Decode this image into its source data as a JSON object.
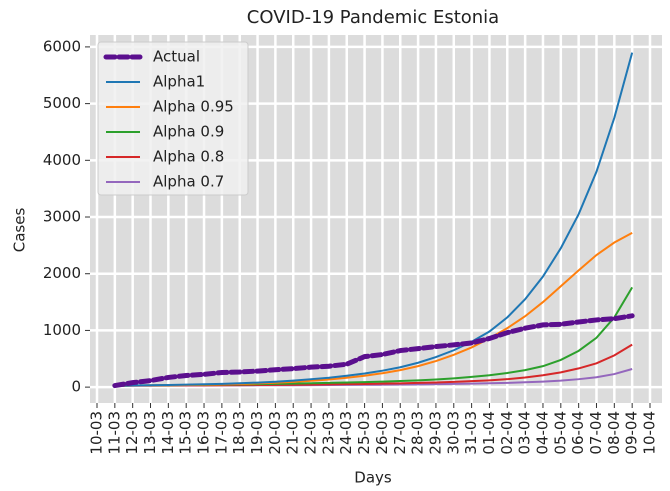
{
  "chart_data": {
    "type": "line",
    "title": "COVID-19 Pandemic Estonia",
    "x_label": "Days",
    "y_label": "Cases",
    "categories": [
      "10-03",
      "11-03",
      "12-03",
      "13-03",
      "14-03",
      "15-03",
      "16-03",
      "17-03",
      "18-03",
      "19-03",
      "20-03",
      "21-03",
      "22-03",
      "23-03",
      "24-03",
      "25-03",
      "26-03",
      "27-03",
      "28-03",
      "29-03",
      "30-03",
      "31-03",
      "01-04",
      "02-04",
      "03-04",
      "04-04",
      "05-04",
      "06-04",
      "07-04",
      "08-04",
      "09-04",
      "10-04"
    ],
    "series": [
      {
        "name": "Actual",
        "color": "#5b0f8e",
        "style": "dashed",
        "values": [
          null,
          27,
          79,
          115,
          171,
          205,
          225,
          258,
          267,
          283,
          306,
          326,
          352,
          369,
          404,
          538,
          575,
          645,
          679,
          715,
          745,
          779,
          858,
          961,
          1039,
          1097,
          1108,
          1149,
          1185,
          1207,
          1258,
          null
        ]
      },
      {
        "name": "Alpha1",
        "color": "#1f77b4",
        "values": [
          null,
          25,
          28,
          32,
          37,
          43,
          50,
          58,
          68,
          80,
          95,
          115,
          140,
          165,
          200,
          240,
          290,
          350,
          430,
          530,
          650,
          800,
          980,
          1230,
          1550,
          1950,
          2450,
          3050,
          3800,
          4750,
          5900,
          null
        ]
      },
      {
        "name": "Alpha 0.95",
        "color": "#ff7f0e",
        "values": [
          null,
          25,
          27,
          30,
          33,
          37,
          42,
          48,
          56,
          66,
          78,
          93,
          112,
          135,
          165,
          200,
          245,
          300,
          370,
          460,
          570,
          700,
          860,
          1040,
          1250,
          1500,
          1780,
          2060,
          2330,
          2550,
          2720,
          null
        ]
      },
      {
        "name": "Alpha 0.9",
        "color": "#2ca02c",
        "values": [
          null,
          25,
          28,
          31,
          34,
          37,
          40,
          44,
          48,
          52,
          57,
          62,
          68,
          74,
          81,
          89,
          98,
          108,
          120,
          135,
          155,
          180,
          210,
          250,
          300,
          370,
          480,
          640,
          870,
          1230,
          1760,
          null
        ]
      },
      {
        "name": "Alpha 0.8",
        "color": "#d62728",
        "values": [
          null,
          25,
          26,
          27,
          28,
          30,
          31,
          33,
          35,
          37,
          39,
          42,
          45,
          48,
          52,
          56,
          61,
          67,
          74,
          82,
          92,
          105,
          120,
          140,
          170,
          210,
          260,
          330,
          420,
          560,
          750,
          null
        ]
      },
      {
        "name": "Alpha 0.7",
        "color": "#9467bd",
        "values": [
          null,
          25,
          26,
          26,
          27,
          28,
          29,
          30,
          31,
          32,
          33,
          34,
          35,
          37,
          39,
          41,
          43,
          46,
          49,
          53,
          57,
          62,
          68,
          75,
          85,
          97,
          115,
          140,
          175,
          230,
          320,
          null
        ]
      }
    ],
    "ylim": [
      -280,
      6210
    ],
    "yticks": [
      0,
      1000,
      2000,
      3000,
      4000,
      5000,
      6000
    ],
    "grid": true,
    "legend": "upper left"
  }
}
